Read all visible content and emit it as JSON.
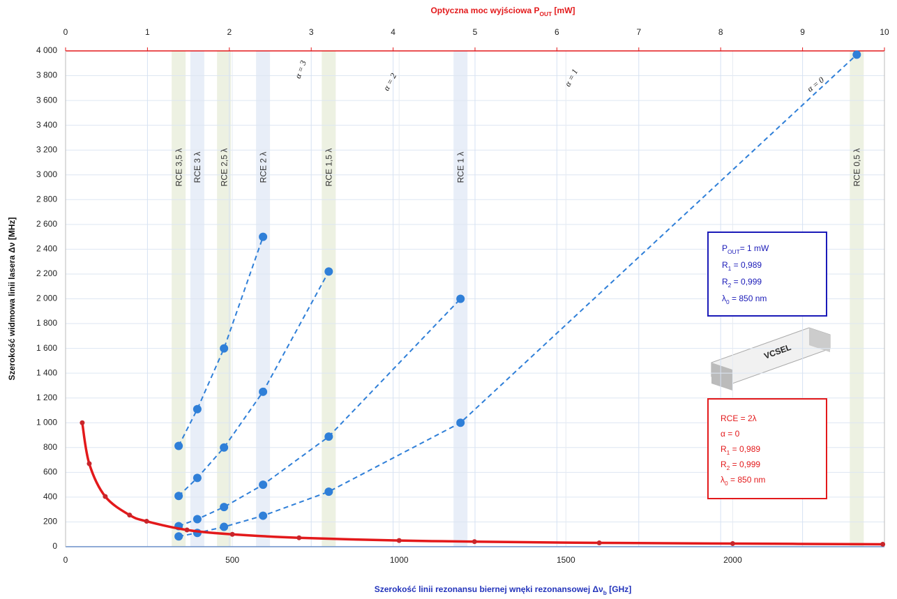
{
  "chart_data": {
    "type": "line",
    "top_title": {
      "text": "Optyczna moc wyjściowa P",
      "sub": "OUT",
      "after": " [mW]"
    },
    "y_title": {
      "text": "Szerokość widmowa linii lasera Δν [MHz]"
    },
    "x_title": {
      "text": "Szerokość linii rezonansu biernej wnęki rezonansowej  Δν",
      "sub": "b",
      "after": "  [GHz]"
    },
    "xlim": [
      0,
      2455
    ],
    "xticks": [
      0,
      500,
      1000,
      1500,
      2000
    ],
    "x2lim": [
      0,
      10
    ],
    "x2ticks": [
      0,
      1,
      2,
      3,
      4,
      5,
      6,
      7,
      8,
      9,
      10
    ],
    "ylim": [
      0,
      4000
    ],
    "yticks": [
      0,
      200,
      400,
      600,
      800,
      {
        "value": 1000,
        "label": "1 000"
      },
      {
        "value": 1200,
        "label": "1 200"
      },
      {
        "value": 1400,
        "label": "1 400"
      },
      {
        "value": 1600,
        "label": "1 600"
      },
      {
        "value": 1800,
        "label": "1 800"
      },
      {
        "value": 2000,
        "label": "2 000"
      },
      {
        "value": 2200,
        "label": "2 200"
      },
      {
        "value": 2400,
        "label": "2 400"
      },
      {
        "value": 2600,
        "label": "2 600"
      },
      {
        "value": 2800,
        "label": "2 800"
      },
      {
        "value": 3000,
        "label": "3 000"
      },
      {
        "value": 3200,
        "label": "3 200"
      },
      {
        "value": 3400,
        "label": "3 400"
      },
      {
        "value": 3600,
        "label": "3 600"
      },
      {
        "value": 3800,
        "label": "3 800"
      },
      {
        "value": 4000,
        "label": "4 000"
      }
    ],
    "grid": true,
    "bands": [
      {
        "label": "RCE 3,5 λ",
        "x": 339,
        "color": "#edf1e2"
      },
      {
        "label": "RCE 3 λ",
        "x": 395,
        "color": "#e8eef8"
      },
      {
        "label": "RCE 2,5 λ",
        "x": 475,
        "color": "#edf1e2"
      },
      {
        "label": "RCE 2 λ",
        "x": 592,
        "color": "#e8eef8"
      },
      {
        "label": "RCE 1,5 λ",
        "x": 789,
        "color": "#edf1e2"
      },
      {
        "label": "RCE 1 λ",
        "x": 1184,
        "color": "#e8eef8"
      },
      {
        "label": "RCE 0,5 λ",
        "x": 2372,
        "color": "#edf1e2"
      }
    ],
    "series": [
      {
        "name": "α = 0",
        "color": "#2f7fd8",
        "x": [
          339,
          395,
          475,
          592,
          789,
          1184,
          2372
        ],
        "values": [
          83,
          111,
          160,
          250,
          444,
          1000,
          3970
        ]
      },
      {
        "name": "α = 1",
        "color": "#2f7fd8",
        "x": [
          339,
          395,
          475,
          592,
          789,
          1184
        ],
        "values": [
          166,
          222,
          320,
          500,
          888,
          2000
        ]
      },
      {
        "name": "α = 2",
        "color": "#2f7fd8",
        "x": [
          339,
          395,
          475,
          592,
          789
        ],
        "values": [
          409,
          555,
          800,
          1250,
          2220
        ]
      },
      {
        "name": "α = 3",
        "color": "#2f7fd8",
        "x": [
          339,
          395,
          475,
          592
        ],
        "values": [
          813,
          1110,
          1600,
          2500
        ]
      }
    ],
    "curve": {
      "color": "#e3191b",
      "x": [
        50,
        71,
        119,
        192,
        243,
        364,
        500,
        700,
        1000,
        1226,
        1600,
        2000,
        2450
      ],
      "values": [
        1000,
        670,
        405,
        255,
        205,
        135,
        100,
        72,
        50,
        41,
        31,
        25,
        20
      ]
    },
    "blue_box": [
      {
        "text": "P",
        "sub": "OUT",
        "after": "= 1 mW"
      },
      {
        "text": "R",
        "sub": "1",
        "after": "   = 0,989"
      },
      {
        "text": "R",
        "sub": "2",
        "after": "   = 0,999"
      },
      {
        "text": "λ",
        "sub": "0",
        "after": "    = 850 nm"
      }
    ],
    "red_box": [
      {
        "text": "RCE  = 2λ"
      },
      {
        "text": "α     = 0"
      },
      {
        "text": "R",
        "sub": "1",
        "after": "    = 0,989"
      },
      {
        "text": "R",
        "sub": "2",
        "after": "    = 0,999"
      },
      {
        "text": "λ",
        "sub": "0",
        "after": "     = 850 nm"
      }
    ],
    "vcsel_label": "VCSEL"
  }
}
